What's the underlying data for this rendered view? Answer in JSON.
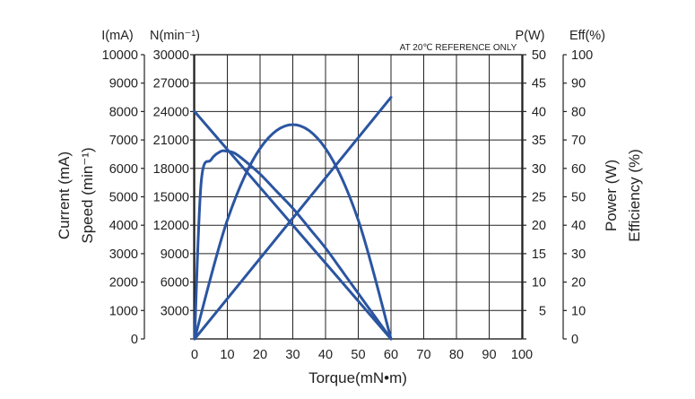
{
  "chart_data": {
    "type": "line",
    "annotation": "AT 20℃ REFERENCE ONLY",
    "xlabel": "Torque(mN•m)",
    "xlim": [
      0,
      100
    ],
    "x_ticks": [
      "0",
      "10",
      "20",
      "30",
      "40",
      "50",
      "60",
      "70",
      "80",
      "90",
      "100"
    ],
    "axes": {
      "current": {
        "unit": "I(mA)",
        "label": "Current (mA)",
        "range": [
          0,
          10000
        ],
        "ticks": [
          "0",
          "1000",
          "2000",
          "3000",
          "4000",
          "5000",
          "6000",
          "7000",
          "8000",
          "9000",
          "10000"
        ]
      },
      "speed": {
        "unit": "N(min⁻¹)",
        "label": "Speed (min⁻¹)",
        "range": [
          0,
          30000
        ],
        "ticks": [
          "",
          "3000",
          "6000",
          "9000",
          "12000",
          "15000",
          "18000",
          "21000",
          "24000",
          "27000",
          "30000"
        ]
      },
      "power": {
        "unit": "P(W)",
        "label": "Power (W)",
        "range": [
          0,
          50
        ],
        "ticks": [
          "",
          "5",
          "10",
          "15",
          "20",
          "25",
          "30",
          "35",
          "40",
          "45",
          "50"
        ]
      },
      "efficiency": {
        "unit": "Eff(%)",
        "label": "Efficiency (%)",
        "range": [
          0,
          100
        ],
        "ticks": [
          "0",
          "10",
          "20",
          "30",
          "40",
          "50",
          "60",
          "70",
          "80",
          "90",
          "100"
        ]
      }
    },
    "series": [
      {
        "axis": "current",
        "x": [
          0,
          60
        ],
        "y": [
          0,
          8500
        ]
      },
      {
        "axis": "speed",
        "x": [
          0,
          60
        ],
        "y": [
          24000,
          0
        ]
      },
      {
        "axis": "power",
        "x": [
          0,
          10,
          20,
          30,
          40,
          50,
          60
        ],
        "y": [
          0,
          20.9,
          33.5,
          37.7,
          33.5,
          20.9,
          0
        ]
      },
      {
        "axis": "efficiency",
        "x": [
          0,
          2,
          5,
          8,
          10,
          12,
          15,
          20,
          25,
          30,
          35,
          40,
          45,
          50,
          55,
          60
        ],
        "y": [
          0,
          55,
          63,
          66,
          66,
          65.5,
          63,
          58,
          52,
          46,
          39,
          32,
          24,
          16,
          8,
          0
        ]
      }
    ],
    "grid": true
  },
  "colors": {
    "curve": "#2b55a1",
    "grid": "#222222"
  }
}
